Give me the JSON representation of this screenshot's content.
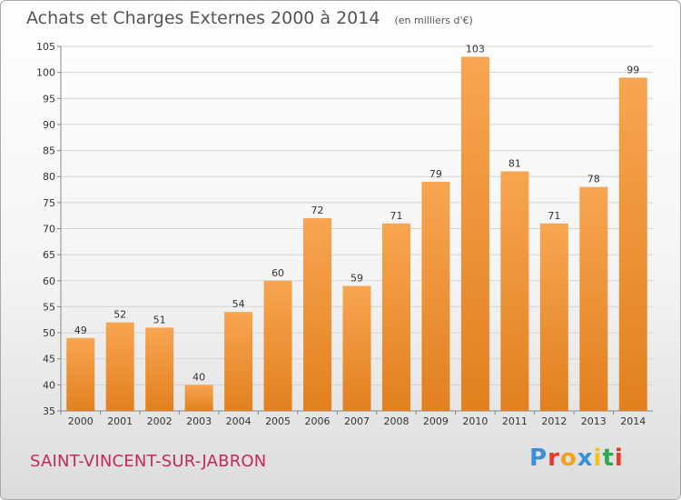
{
  "header": {
    "title": "Achats et Charges Externes 2000 à 2014",
    "unit": "(en milliers d'€)"
  },
  "footer": {
    "commune": "SAINT-VINCENT-SUR-JABRON",
    "logo_text": "Proxiti"
  },
  "colors": {
    "bar_light": "#f8a551",
    "bar_dark": "#e2801f",
    "gridline": "#d4d4d4",
    "axis": "#888888",
    "label": "#333333",
    "commune": "#c4295a"
  },
  "chart_data": {
    "type": "bar",
    "categories": [
      "2000",
      "2001",
      "2002",
      "2003",
      "2004",
      "2005",
      "2006",
      "2007",
      "2008",
      "2009",
      "2010",
      "2011",
      "2012",
      "2013",
      "2014"
    ],
    "values": [
      49,
      52,
      51,
      40,
      54,
      60,
      72,
      59,
      71,
      79,
      103,
      81,
      71,
      78,
      99
    ],
    "title": "Achats et Charges Externes 2000 à 2014",
    "ylim": [
      35,
      105
    ],
    "yticks": [
      35,
      40,
      45,
      50,
      55,
      60,
      65,
      70,
      75,
      80,
      85,
      90,
      95,
      100,
      105
    ],
    "grid": true,
    "legend": "none"
  }
}
